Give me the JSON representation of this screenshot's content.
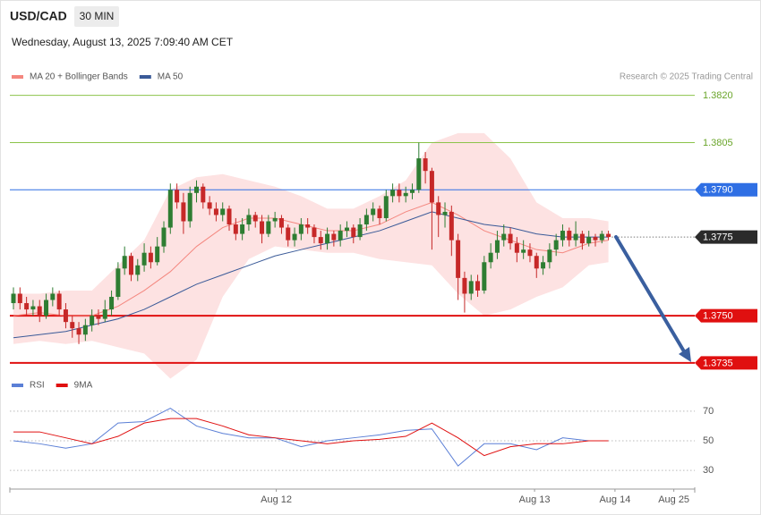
{
  "header": {
    "symbol": "USD/CAD",
    "timeframe": "30 MIN",
    "datetime": "Wednesday, August 13, 2025 7:09:40 AM CET"
  },
  "chart_data": [
    {
      "type": "candlestick",
      "credit": "Research © 2025 Trading Central",
      "up_color": "#2e7d32",
      "down_color": "#c62828",
      "xlim": [
        -0.55,
        104.2
      ],
      "ylim": [
        1.3731,
        1.3829
      ],
      "ohlc": [
        [
          1.3754,
          1.3759,
          1.3752,
          1.3757
        ],
        [
          1.3757,
          1.3759,
          1.3752,
          1.3754
        ],
        [
          1.3754,
          1.3756,
          1.375,
          1.3752
        ],
        [
          1.3752,
          1.3755,
          1.375,
          1.3753
        ],
        [
          1.3753,
          1.3755,
          1.3748,
          1.375
        ],
        [
          1.375,
          1.3757,
          1.3749,
          1.3755
        ],
        [
          1.3755,
          1.3759,
          1.3753,
          1.3757
        ],
        [
          1.3757,
          1.3758,
          1.375,
          1.3752
        ],
        [
          1.3752,
          1.3754,
          1.3746,
          1.3748
        ],
        [
          1.3748,
          1.375,
          1.3743,
          1.3746
        ],
        [
          1.3746,
          1.3748,
          1.3741,
          1.3744
        ],
        [
          1.3744,
          1.3749,
          1.3742,
          1.3747
        ],
        [
          1.3747,
          1.3752,
          1.3745,
          1.375
        ],
        [
          1.375,
          1.3752,
          1.3747,
          1.3749
        ],
        [
          1.3749,
          1.3755,
          1.3748,
          1.3752
        ],
        [
          1.3752,
          1.3758,
          1.375,
          1.3756
        ],
        [
          1.3756,
          1.3767,
          1.3755,
          1.3765
        ],
        [
          1.3765,
          1.3772,
          1.3763,
          1.3769
        ],
        [
          1.3769,
          1.377,
          1.3761,
          1.3763
        ],
        [
          1.3763,
          1.3768,
          1.3761,
          1.3766
        ],
        [
          1.3766,
          1.3773,
          1.3764,
          1.377
        ],
        [
          1.377,
          1.3772,
          1.3765,
          1.3767
        ],
        [
          1.3767,
          1.3775,
          1.3766,
          1.3772
        ],
        [
          1.3772,
          1.378,
          1.377,
          1.3778
        ],
        [
          1.3778,
          1.3792,
          1.3776,
          1.379
        ],
        [
          1.379,
          1.3792,
          1.3784,
          1.3786
        ],
        [
          1.3786,
          1.3789,
          1.3776,
          1.378
        ],
        [
          1.378,
          1.3791,
          1.3778,
          1.3789
        ],
        [
          1.3789,
          1.3793,
          1.3786,
          1.3791
        ],
        [
          1.3791,
          1.3792,
          1.3784,
          1.3786
        ],
        [
          1.3786,
          1.3788,
          1.3782,
          1.3784
        ],
        [
          1.3784,
          1.3786,
          1.378,
          1.3782
        ],
        [
          1.3782,
          1.3786,
          1.378,
          1.3784
        ],
        [
          1.3784,
          1.3785,
          1.3777,
          1.3779
        ],
        [
          1.3779,
          1.3781,
          1.3774,
          1.3776
        ],
        [
          1.3776,
          1.3781,
          1.3774,
          1.3779
        ],
        [
          1.3779,
          1.3784,
          1.3777,
          1.3782
        ],
        [
          1.3782,
          1.3783,
          1.3778,
          1.378
        ],
        [
          1.378,
          1.3782,
          1.3773,
          1.3776
        ],
        [
          1.3776,
          1.3782,
          1.3775,
          1.378
        ],
        [
          1.378,
          1.3783,
          1.3778,
          1.3781
        ],
        [
          1.3781,
          1.3782,
          1.3776,
          1.3778
        ],
        [
          1.3778,
          1.3779,
          1.3772,
          1.3774
        ],
        [
          1.3774,
          1.3778,
          1.3772,
          1.3776
        ],
        [
          1.3776,
          1.3781,
          1.3774,
          1.3779
        ],
        [
          1.3779,
          1.3781,
          1.3776,
          1.3778
        ],
        [
          1.3778,
          1.3779,
          1.3773,
          1.3775
        ],
        [
          1.3775,
          1.3777,
          1.3771,
          1.3773
        ],
        [
          1.3773,
          1.3778,
          1.3771,
          1.3776
        ],
        [
          1.3776,
          1.3777,
          1.3772,
          1.3774
        ],
        [
          1.3774,
          1.3779,
          1.3772,
          1.3777
        ],
        [
          1.3777,
          1.378,
          1.3775,
          1.3778
        ],
        [
          1.3778,
          1.3779,
          1.3773,
          1.3775
        ],
        [
          1.3775,
          1.3781,
          1.3774,
          1.3779
        ],
        [
          1.3779,
          1.3784,
          1.3777,
          1.3782
        ],
        [
          1.3782,
          1.3786,
          1.378,
          1.3784
        ],
        [
          1.3784,
          1.3785,
          1.3779,
          1.3781
        ],
        [
          1.3781,
          1.379,
          1.378,
          1.3788
        ],
        [
          1.3788,
          1.3792,
          1.3786,
          1.379
        ],
        [
          1.379,
          1.3792,
          1.3786,
          1.3788
        ],
        [
          1.3788,
          1.3791,
          1.3786,
          1.3789
        ],
        [
          1.3789,
          1.3792,
          1.3787,
          1.379
        ],
        [
          1.379,
          1.3805,
          1.3789,
          1.38
        ],
        [
          1.38,
          1.3802,
          1.3792,
          1.3796
        ],
        [
          1.3796,
          1.3797,
          1.3771,
          1.3786
        ],
        [
          1.3786,
          1.3788,
          1.3775,
          1.3782
        ],
        [
          1.3782,
          1.3786,
          1.3778,
          1.3783
        ],
        [
          1.3783,
          1.3785,
          1.3769,
          1.3774
        ],
        [
          1.3774,
          1.3776,
          1.3755,
          1.3762
        ],
        [
          1.3762,
          1.3764,
          1.3751,
          1.3757
        ],
        [
          1.3757,
          1.3763,
          1.3755,
          1.3761
        ],
        [
          1.3761,
          1.3763,
          1.3756,
          1.3758
        ],
        [
          1.3758,
          1.3769,
          1.3757,
          1.3767
        ],
        [
          1.3767,
          1.3773,
          1.3765,
          1.377
        ],
        [
          1.377,
          1.3777,
          1.3768,
          1.3774
        ],
        [
          1.3774,
          1.3779,
          1.3772,
          1.3776
        ],
        [
          1.3776,
          1.3778,
          1.3771,
          1.3773
        ],
        [
          1.3773,
          1.3775,
          1.3767,
          1.377
        ],
        [
          1.377,
          1.3774,
          1.3768,
          1.3771
        ],
        [
          1.3771,
          1.3773,
          1.3767,
          1.3769
        ],
        [
          1.3769,
          1.377,
          1.3762,
          1.3765
        ],
        [
          1.3765,
          1.3769,
          1.3763,
          1.3767
        ],
        [
          1.3767,
          1.3773,
          1.3765,
          1.3771
        ],
        [
          1.3771,
          1.3776,
          1.3769,
          1.3774
        ],
        [
          1.3774,
          1.3779,
          1.3772,
          1.3777
        ],
        [
          1.3777,
          1.3778,
          1.3772,
          1.3774
        ],
        [
          1.3774,
          1.378,
          1.3772,
          1.3776
        ],
        [
          1.3776,
          1.3777,
          1.3771,
          1.3773
        ],
        [
          1.3773,
          1.3777,
          1.3772,
          1.3775
        ],
        [
          1.3775,
          1.3776,
          1.3772,
          1.3774
        ],
        [
          1.3774,
          1.3777,
          1.3773,
          1.3776
        ],
        [
          1.3776,
          1.3777,
          1.3774,
          1.3775
        ]
      ],
      "x": [
        0,
        4,
        8,
        12,
        16,
        20,
        24,
        28,
        32,
        36,
        40,
        44,
        48,
        52,
        56,
        60,
        64,
        68,
        72,
        76,
        80,
        84,
        88,
        91
      ],
      "series": [
        {
          "name": "MA 20 + Bollinger Bands",
          "color": "#f4877f",
          "band_color": "#fde2e2",
          "values": [
            1.375,
            1.3751,
            1.375,
            1.375,
            1.3753,
            1.3758,
            1.3764,
            1.3772,
            1.3778,
            1.3781,
            1.3781,
            1.3779,
            1.3777,
            1.3777,
            1.3779,
            1.3783,
            1.3786,
            1.3782,
            1.3777,
            1.3774,
            1.3771,
            1.377,
            1.3773,
            1.3774
          ],
          "upper": [
            1.3757,
            1.3757,
            1.3758,
            1.3758,
            1.3766,
            1.3774,
            1.379,
            1.3794,
            1.3795,
            1.3793,
            1.3791,
            1.3788,
            1.3784,
            1.3784,
            1.3788,
            1.3793,
            1.3805,
            1.3808,
            1.3808,
            1.38,
            1.3786,
            1.3781,
            1.3781,
            1.378
          ],
          "lower": [
            1.3741,
            1.3742,
            1.3741,
            1.3742,
            1.374,
            1.3738,
            1.373,
            1.3736,
            1.3756,
            1.3768,
            1.3772,
            1.3771,
            1.377,
            1.377,
            1.3768,
            1.3767,
            1.3766,
            1.3757,
            1.375,
            1.3752,
            1.3756,
            1.3759,
            1.3766,
            1.3767
          ]
        },
        {
          "name": "MA 50",
          "color": "#3a5a98",
          "values": [
            1.3743,
            1.3744,
            1.3745,
            1.3747,
            1.3749,
            1.3752,
            1.3756,
            1.376,
            1.3763,
            1.3766,
            1.3769,
            1.3771,
            1.3773,
            1.3775,
            1.3777,
            1.378,
            1.3783,
            1.3781,
            1.3779,
            1.3778,
            1.3776,
            1.3775,
            1.3775,
            1.3775
          ]
        }
      ],
      "levels": [
        {
          "value": 1.382,
          "label": "1.3820",
          "color": "#8bc34a",
          "boxed": false,
          "dotted": false
        },
        {
          "value": 1.3805,
          "label": "1.3805",
          "color": "#8bc34a",
          "boxed": false,
          "dotted": false
        },
        {
          "value": 1.379,
          "label": "1.3790",
          "color": "#2f6fe4",
          "boxed": true,
          "dotted": false
        },
        {
          "value": 1.3775,
          "label": "1.3775",
          "color": "#2b2b2b",
          "boxed": true,
          "dotted": true
        },
        {
          "value": 1.375,
          "label": "1.3750",
          "color": "#e01010",
          "boxed": true,
          "dotted": false
        },
        {
          "value": 1.3735,
          "label": "1.3735",
          "color": "#e01010",
          "boxed": true,
          "dotted": false
        }
      ]
    },
    {
      "type": "line",
      "xlim": [
        -0.55,
        104.2
      ],
      "ylim": [
        21,
        79
      ],
      "yticks": [
        30,
        50,
        70
      ],
      "x": [
        0,
        4,
        8,
        12,
        16,
        20,
        24,
        28,
        32,
        36,
        40,
        44,
        48,
        52,
        56,
        60,
        64,
        68,
        72,
        76,
        80,
        84,
        88,
        91
      ],
      "xticks": [
        {
          "value": 40.2,
          "label": "Aug 12"
        },
        {
          "value": 79.7,
          "label": "Aug 13"
        },
        {
          "value": 92,
          "label": "Aug 14"
        },
        {
          "value": 101,
          "label": "Aug 25"
        }
      ],
      "series": [
        {
          "name": "RSI",
          "color": "#5b7fd6",
          "values": [
            50,
            48,
            45,
            48,
            62,
            63,
            72,
            60,
            55,
            52,
            52,
            46,
            50,
            52,
            54,
            57,
            58,
            33,
            48,
            48,
            44,
            52,
            50,
            50
          ]
        },
        {
          "name": "9MA",
          "color": "#e01010",
          "values": [
            56,
            56,
            52,
            48,
            53,
            62,
            65,
            65,
            60,
            54,
            52,
            50,
            48,
            50,
            51,
            53,
            62,
            52,
            40,
            46,
            48,
            48,
            50,
            50
          ]
        }
      ]
    }
  ]
}
